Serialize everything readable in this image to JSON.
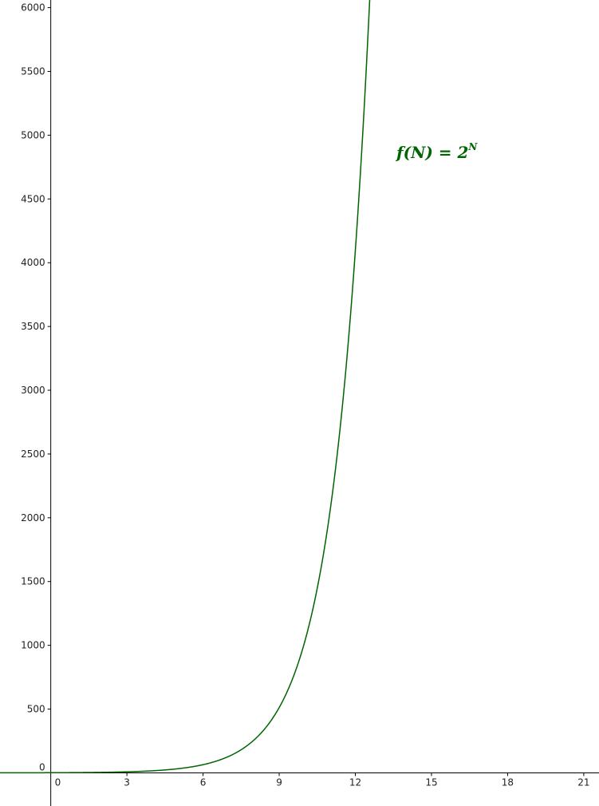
{
  "chart_data": {
    "type": "line",
    "function": "f(N) = 2^N",
    "label": {
      "name": "f(N)",
      "equals": " = ",
      "base": "2",
      "exponent": "N"
    },
    "xlim": [
      -2,
      21.6
    ],
    "ylim": [
      -260,
      6060
    ],
    "x_ticks": [
      0,
      3,
      6,
      9,
      12,
      15,
      18,
      21
    ],
    "y_ticks": [
      0,
      500,
      1000,
      1500,
      2000,
      2500,
      3000,
      3500,
      4000,
      4500,
      5000,
      5500,
      6000
    ],
    "grid": false,
    "series": [
      {
        "x": [
          -2,
          0,
          2,
          4,
          6,
          7,
          8,
          9,
          10,
          11,
          11.5,
          12,
          12.5,
          12.6
        ],
        "y": [
          0.25,
          1,
          4,
          16,
          64,
          128,
          256,
          512,
          1024,
          2048,
          2896,
          4096,
          5793,
          6208
        ]
      }
    ],
    "colors": {
      "curve": "#006400",
      "axes": "#000000"
    }
  }
}
